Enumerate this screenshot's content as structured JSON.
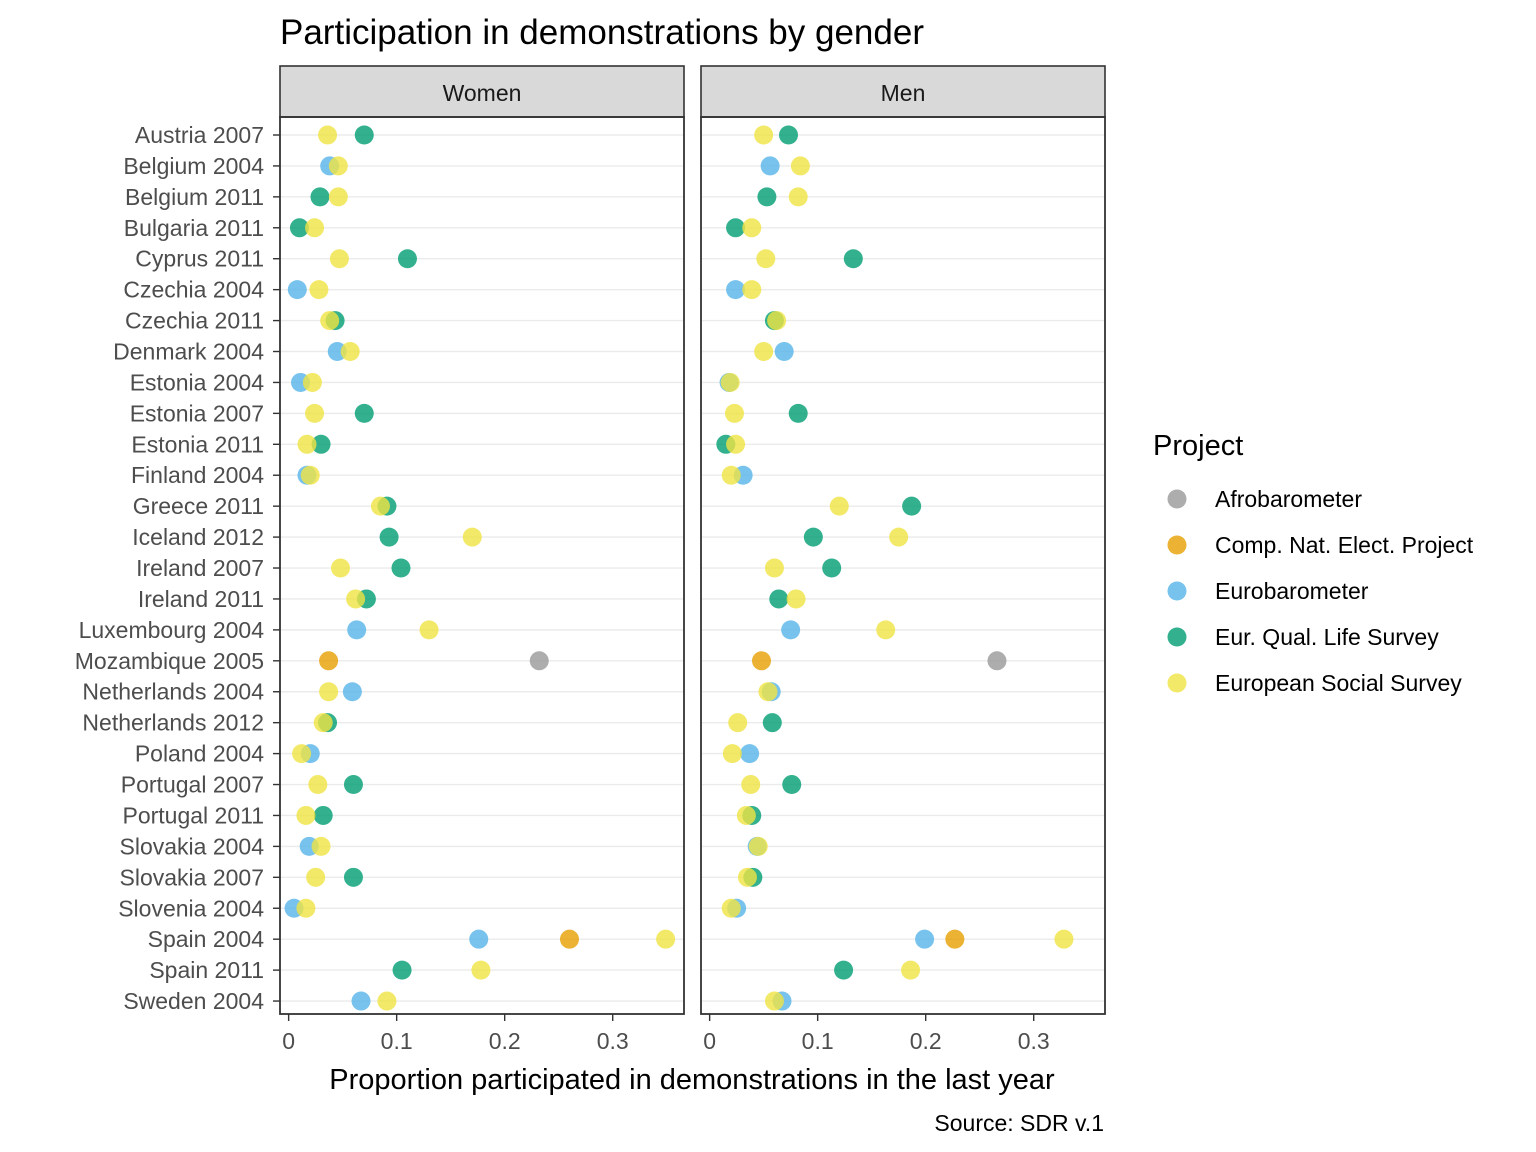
{
  "chart_data": {
    "type": "scatter",
    "title": "Participation in demonstrations by gender",
    "xlabel": "Proportion participated in demonstrations in the last year",
    "caption": "Source: SDR v.1",
    "xlim": [
      -0.008,
      0.366
    ],
    "x_ticks": [
      0,
      0.1,
      0.2,
      0.3
    ],
    "x_tick_labels": [
      "0",
      "0.1",
      "0.2",
      "0.3"
    ],
    "grid": true,
    "legend": {
      "title": "Project",
      "placement": "right"
    },
    "categories": [
      "Austria 2007",
      "Belgium 2004",
      "Belgium 2011",
      "Bulgaria 2011",
      "Cyprus 2011",
      "Czechia 2004",
      "Czechia 2011",
      "Denmark 2004",
      "Estonia 2004",
      "Estonia 2007",
      "Estonia 2011",
      "Finland 2004",
      "Greece 2011",
      "Iceland 2012",
      "Ireland 2007",
      "Ireland 2011",
      "Luxembourg 2004",
      "Mozambique 2005",
      "Netherlands 2004",
      "Netherlands 2012",
      "Poland 2004",
      "Portugal 2007",
      "Portugal 2011",
      "Slovakia 2004",
      "Slovakia 2007",
      "Slovenia 2004",
      "Spain 2004",
      "Spain 2011",
      "Sweden 2004"
    ],
    "panels": [
      "Women",
      "Men"
    ],
    "series": [
      {
        "name": "Afrobarometer",
        "color": "#999999",
        "points": [
          {
            "panel": "Women",
            "category": "Mozambique 2005",
            "x": 0.232
          },
          {
            "panel": "Men",
            "category": "Mozambique 2005",
            "x": 0.266
          }
        ]
      },
      {
        "name": "Comp. Nat. Elect. Project",
        "color": "#E69F00",
        "points": [
          {
            "panel": "Women",
            "category": "Mozambique 2005",
            "x": 0.037
          },
          {
            "panel": "Women",
            "category": "Spain 2004",
            "x": 0.26
          },
          {
            "panel": "Men",
            "category": "Mozambique 2005",
            "x": 0.048
          },
          {
            "panel": "Men",
            "category": "Spain 2004",
            "x": 0.227
          }
        ]
      },
      {
        "name": "Eurobarometer",
        "color": "#56B4E9",
        "points": [
          {
            "panel": "Women",
            "category": "Belgium 2004",
            "x": 0.038
          },
          {
            "panel": "Women",
            "category": "Czechia 2004",
            "x": 0.008
          },
          {
            "panel": "Women",
            "category": "Denmark 2004",
            "x": 0.045
          },
          {
            "panel": "Women",
            "category": "Estonia 2004",
            "x": 0.011
          },
          {
            "panel": "Women",
            "category": "Finland 2004",
            "x": 0.017
          },
          {
            "panel": "Women",
            "category": "Luxembourg 2004",
            "x": 0.063
          },
          {
            "panel": "Women",
            "category": "Netherlands 2004",
            "x": 0.059
          },
          {
            "panel": "Women",
            "category": "Poland 2004",
            "x": 0.02
          },
          {
            "panel": "Women",
            "category": "Slovakia 2004",
            "x": 0.019
          },
          {
            "panel": "Women",
            "category": "Slovenia 2004",
            "x": 0.005
          },
          {
            "panel": "Women",
            "category": "Spain 2004",
            "x": 0.176
          },
          {
            "panel": "Women",
            "category": "Sweden 2004",
            "x": 0.067
          },
          {
            "panel": "Men",
            "category": "Belgium 2004",
            "x": 0.056
          },
          {
            "panel": "Men",
            "category": "Czechia 2004",
            "x": 0.024
          },
          {
            "panel": "Men",
            "category": "Denmark 2004",
            "x": 0.069
          },
          {
            "panel": "Men",
            "category": "Estonia 2004",
            "x": 0.018
          },
          {
            "panel": "Men",
            "category": "Finland 2004",
            "x": 0.031
          },
          {
            "panel": "Men",
            "category": "Luxembourg 2004",
            "x": 0.075
          },
          {
            "panel": "Men",
            "category": "Netherlands 2004",
            "x": 0.057
          },
          {
            "panel": "Men",
            "category": "Poland 2004",
            "x": 0.037
          },
          {
            "panel": "Men",
            "category": "Slovakia 2004",
            "x": 0.044
          },
          {
            "panel": "Men",
            "category": "Slovenia 2004",
            "x": 0.025
          },
          {
            "panel": "Men",
            "category": "Spain 2004",
            "x": 0.199
          },
          {
            "panel": "Men",
            "category": "Sweden 2004",
            "x": 0.067
          }
        ]
      },
      {
        "name": "Eur. Qual. Life Survey",
        "color": "#009E73",
        "points": [
          {
            "panel": "Women",
            "category": "Austria 2007",
            "x": 0.07
          },
          {
            "panel": "Women",
            "category": "Belgium 2011",
            "x": 0.029
          },
          {
            "panel": "Women",
            "category": "Bulgaria 2011",
            "x": 0.01
          },
          {
            "panel": "Women",
            "category": "Cyprus 2011",
            "x": 0.11
          },
          {
            "panel": "Women",
            "category": "Czechia 2011",
            "x": 0.043
          },
          {
            "panel": "Women",
            "category": "Estonia 2007",
            "x": 0.07
          },
          {
            "panel": "Women",
            "category": "Estonia 2011",
            "x": 0.03
          },
          {
            "panel": "Women",
            "category": "Greece 2011",
            "x": 0.091
          },
          {
            "panel": "Women",
            "category": "Iceland 2012",
            "x": 0.093
          },
          {
            "panel": "Women",
            "category": "Ireland 2007",
            "x": 0.104
          },
          {
            "panel": "Women",
            "category": "Ireland 2011",
            "x": 0.072
          },
          {
            "panel": "Women",
            "category": "Netherlands 2012",
            "x": 0.036
          },
          {
            "panel": "Women",
            "category": "Portugal 2007",
            "x": 0.06
          },
          {
            "panel": "Women",
            "category": "Portugal 2011",
            "x": 0.032
          },
          {
            "panel": "Women",
            "category": "Slovakia 2007",
            "x": 0.06
          },
          {
            "panel": "Women",
            "category": "Spain 2011",
            "x": 0.105
          },
          {
            "panel": "Men",
            "category": "Austria 2007",
            "x": 0.073
          },
          {
            "panel": "Men",
            "category": "Belgium 2011",
            "x": 0.053
          },
          {
            "panel": "Men",
            "category": "Bulgaria 2011",
            "x": 0.024
          },
          {
            "panel": "Men",
            "category": "Cyprus 2011",
            "x": 0.133
          },
          {
            "panel": "Men",
            "category": "Czechia 2011",
            "x": 0.06
          },
          {
            "panel": "Men",
            "category": "Estonia 2007",
            "x": 0.082
          },
          {
            "panel": "Men",
            "category": "Estonia 2011",
            "x": 0.015
          },
          {
            "panel": "Men",
            "category": "Greece 2011",
            "x": 0.187
          },
          {
            "panel": "Men",
            "category": "Iceland 2012",
            "x": 0.096
          },
          {
            "panel": "Men",
            "category": "Ireland 2007",
            "x": 0.113
          },
          {
            "panel": "Men",
            "category": "Ireland 2011",
            "x": 0.064
          },
          {
            "panel": "Men",
            "category": "Netherlands 2012",
            "x": 0.058
          },
          {
            "panel": "Men",
            "category": "Portugal 2007",
            "x": 0.076
          },
          {
            "panel": "Men",
            "category": "Portugal 2011",
            "x": 0.039
          },
          {
            "panel": "Men",
            "category": "Slovakia 2007",
            "x": 0.04
          },
          {
            "panel": "Men",
            "category": "Spain 2011",
            "x": 0.124
          }
        ]
      },
      {
        "name": "European Social Survey",
        "color": "#F0E442",
        "points": [
          {
            "panel": "Women",
            "category": "Austria 2007",
            "x": 0.036
          },
          {
            "panel": "Women",
            "category": "Belgium 2004",
            "x": 0.046
          },
          {
            "panel": "Women",
            "category": "Belgium 2011",
            "x": 0.046
          },
          {
            "panel": "Women",
            "category": "Bulgaria 2011",
            "x": 0.024
          },
          {
            "panel": "Women",
            "category": "Cyprus 2011",
            "x": 0.047
          },
          {
            "panel": "Women",
            "category": "Czechia 2004",
            "x": 0.028
          },
          {
            "panel": "Women",
            "category": "Czechia 2011",
            "x": 0.038
          },
          {
            "panel": "Women",
            "category": "Denmark 2004",
            "x": 0.057
          },
          {
            "panel": "Women",
            "category": "Estonia 2004",
            "x": 0.022
          },
          {
            "panel": "Women",
            "category": "Estonia 2007",
            "x": 0.024
          },
          {
            "panel": "Women",
            "category": "Estonia 2011",
            "x": 0.017
          },
          {
            "panel": "Women",
            "category": "Finland 2004",
            "x": 0.02
          },
          {
            "panel": "Women",
            "category": "Greece 2011",
            "x": 0.085
          },
          {
            "panel": "Women",
            "category": "Iceland 2012",
            "x": 0.17
          },
          {
            "panel": "Women",
            "category": "Ireland 2007",
            "x": 0.048
          },
          {
            "panel": "Women",
            "category": "Ireland 2011",
            "x": 0.062
          },
          {
            "panel": "Women",
            "category": "Luxembourg 2004",
            "x": 0.13
          },
          {
            "panel": "Women",
            "category": "Netherlands 2004",
            "x": 0.037
          },
          {
            "panel": "Women",
            "category": "Netherlands 2012",
            "x": 0.032
          },
          {
            "panel": "Women",
            "category": "Poland 2004",
            "x": 0.012
          },
          {
            "panel": "Women",
            "category": "Portugal 2007",
            "x": 0.027
          },
          {
            "panel": "Women",
            "category": "Portugal 2011",
            "x": 0.016
          },
          {
            "panel": "Women",
            "category": "Slovakia 2004",
            "x": 0.03
          },
          {
            "panel": "Women",
            "category": "Slovakia 2007",
            "x": 0.025
          },
          {
            "panel": "Women",
            "category": "Slovenia 2004",
            "x": 0.016
          },
          {
            "panel": "Women",
            "category": "Spain 2004",
            "x": 0.349
          },
          {
            "panel": "Women",
            "category": "Spain 2011",
            "x": 0.178
          },
          {
            "panel": "Women",
            "category": "Sweden 2004",
            "x": 0.091
          },
          {
            "panel": "Men",
            "category": "Austria 2007",
            "x": 0.05
          },
          {
            "panel": "Men",
            "category": "Belgium 2004",
            "x": 0.084
          },
          {
            "panel": "Men",
            "category": "Belgium 2011",
            "x": 0.082
          },
          {
            "panel": "Men",
            "category": "Bulgaria 2011",
            "x": 0.039
          },
          {
            "panel": "Men",
            "category": "Cyprus 2011",
            "x": 0.052
          },
          {
            "panel": "Men",
            "category": "Czechia 2004",
            "x": 0.039
          },
          {
            "panel": "Men",
            "category": "Czechia 2011",
            "x": 0.062
          },
          {
            "panel": "Men",
            "category": "Denmark 2004",
            "x": 0.05
          },
          {
            "panel": "Men",
            "category": "Estonia 2004",
            "x": 0.019
          },
          {
            "panel": "Men",
            "category": "Estonia 2007",
            "x": 0.023
          },
          {
            "panel": "Men",
            "category": "Estonia 2011",
            "x": 0.024
          },
          {
            "panel": "Men",
            "category": "Finland 2004",
            "x": 0.02
          },
          {
            "panel": "Men",
            "category": "Greece 2011",
            "x": 0.12
          },
          {
            "panel": "Men",
            "category": "Iceland 2012",
            "x": 0.175
          },
          {
            "panel": "Men",
            "category": "Ireland 2007",
            "x": 0.06
          },
          {
            "panel": "Men",
            "category": "Ireland 2011",
            "x": 0.08
          },
          {
            "panel": "Men",
            "category": "Luxembourg 2004",
            "x": 0.163
          },
          {
            "panel": "Men",
            "category": "Netherlands 2004",
            "x": 0.054
          },
          {
            "panel": "Men",
            "category": "Netherlands 2012",
            "x": 0.026
          },
          {
            "panel": "Men",
            "category": "Poland 2004",
            "x": 0.021
          },
          {
            "panel": "Men",
            "category": "Portugal 2007",
            "x": 0.038
          },
          {
            "panel": "Men",
            "category": "Portugal 2011",
            "x": 0.034
          },
          {
            "panel": "Men",
            "category": "Slovakia 2004",
            "x": 0.045
          },
          {
            "panel": "Men",
            "category": "Slovakia 2007",
            "x": 0.035
          },
          {
            "panel": "Men",
            "category": "Slovenia 2004",
            "x": 0.02
          },
          {
            "panel": "Men",
            "category": "Spain 2004",
            "x": 0.328
          },
          {
            "panel": "Men",
            "category": "Spain 2011",
            "x": 0.186
          },
          {
            "panel": "Men",
            "category": "Sweden 2004",
            "x": 0.06
          }
        ]
      }
    ]
  }
}
